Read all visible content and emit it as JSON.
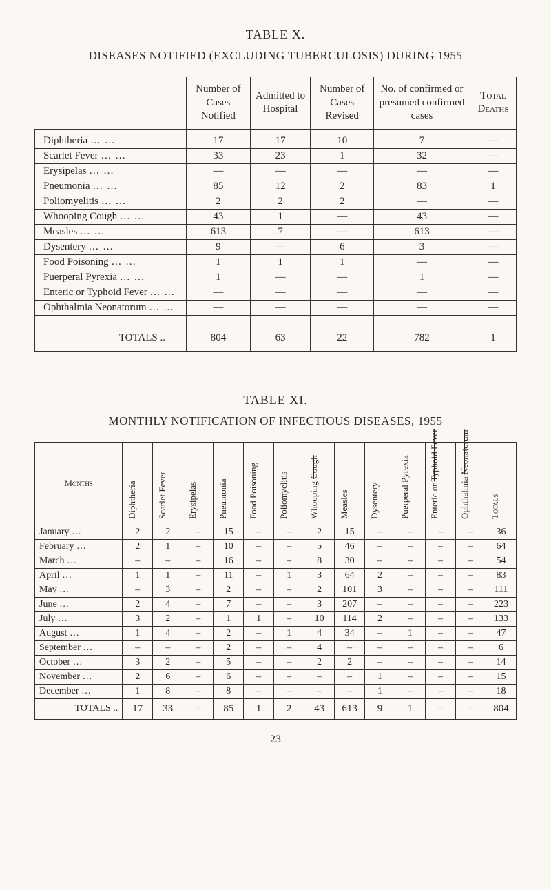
{
  "tableX": {
    "label": "TABLE X.",
    "title": "DISEASES NOTIFIED (EXCLUDING TUBERCULOSIS) DURING 1955",
    "headers": {
      "disease": "",
      "number_cases": "Number of Cases Notified",
      "admitted": "Admitted to Hospital",
      "revised": "Number of Cases Revised",
      "confirmed": "No. of confirmed or presumed confirmed cases",
      "deaths": "Total Deaths"
    },
    "rows": [
      {
        "name": "Diphtheria",
        "v": [
          "17",
          "17",
          "10",
          "7",
          "—"
        ]
      },
      {
        "name": "Scarlet Fever",
        "v": [
          "33",
          "23",
          "1",
          "32",
          "—"
        ]
      },
      {
        "name": "Erysipelas",
        "v": [
          "—",
          "—",
          "—",
          "—",
          "—"
        ]
      },
      {
        "name": "Pneumonia",
        "v": [
          "85",
          "12",
          "2",
          "83",
          "1"
        ]
      },
      {
        "name": "Poliomyelitis",
        "v": [
          "2",
          "2",
          "2",
          "—",
          "—"
        ]
      },
      {
        "name": "Whooping Cough",
        "v": [
          "43",
          "1",
          "—",
          "43",
          "—"
        ]
      },
      {
        "name": "Measles",
        "v": [
          "613",
          "7",
          "—",
          "613",
          "—"
        ]
      },
      {
        "name": "Dysentery",
        "v": [
          "9",
          "—",
          "6",
          "3",
          "—"
        ]
      },
      {
        "name": "Food Poisoning",
        "v": [
          "1",
          "1",
          "1",
          "—",
          "—"
        ]
      },
      {
        "name": "Puerperal Pyrexia",
        "v": [
          "1",
          "—",
          "—",
          "1",
          "—"
        ]
      },
      {
        "name": "Enteric or Typhoid Fever",
        "v": [
          "—",
          "—",
          "—",
          "—",
          "—"
        ]
      },
      {
        "name": "Ophthalmia Neonatorum",
        "v": [
          "—",
          "—",
          "—",
          "—",
          "—"
        ]
      }
    ],
    "totals": {
      "label": "TOTALS",
      "v": [
        "804",
        "63",
        "22",
        "782",
        "1"
      ]
    }
  },
  "tableXI": {
    "label": "TABLE XI.",
    "title": "MONTHLY NOTIFICATION OF INFECTIOUS DISEASES, 1955",
    "headers": {
      "months": "Months",
      "diphtheria": "Diphtheria",
      "scarlet": "Scarlet Fever",
      "erysipelas": "Erysipelas",
      "pneumonia": "Pneumonia",
      "food": "Food Poisoning",
      "polio": "Poliomyelitis",
      "whooping": "Whooping Cough",
      "measles": "Measles",
      "dysentery": "Dysentery",
      "puerperal": "Puerperal Pyrexia",
      "enteric": "Enteric or Typhoid Fever",
      "ophthalmia": "Ophthalmia Neonatorum",
      "totals": "Totals"
    },
    "rows": [
      {
        "m": "January",
        "v": [
          "2",
          "2",
          "–",
          "15",
          "–",
          "–",
          "2",
          "15",
          "–",
          "–",
          "–",
          "–",
          "36"
        ]
      },
      {
        "m": "February",
        "v": [
          "2",
          "1",
          "–",
          "10",
          "–",
          "–",
          "5",
          "46",
          "–",
          "–",
          "–",
          "–",
          "64"
        ]
      },
      {
        "m": "March",
        "v": [
          "–",
          "–",
          "–",
          "16",
          "–",
          "–",
          "8",
          "30",
          "–",
          "–",
          "–",
          "–",
          "54"
        ]
      },
      {
        "m": "April",
        "v": [
          "1",
          "1",
          "–",
          "11",
          "–",
          "1",
          "3",
          "64",
          "2",
          "–",
          "–",
          "–",
          "83"
        ]
      },
      {
        "m": "May",
        "v": [
          "–",
          "3",
          "–",
          "2",
          "–",
          "–",
          "2",
          "101",
          "3",
          "–",
          "–",
          "–",
          "111"
        ]
      },
      {
        "m": "June",
        "v": [
          "2",
          "4",
          "–",
          "7",
          "–",
          "–",
          "3",
          "207",
          "–",
          "–",
          "–",
          "–",
          "223"
        ]
      },
      {
        "m": "July",
        "v": [
          "3",
          "2",
          "–",
          "1",
          "1",
          "–",
          "10",
          "114",
          "2",
          "–",
          "–",
          "–",
          "133"
        ]
      },
      {
        "m": "August",
        "v": [
          "1",
          "4",
          "–",
          "2",
          "–",
          "1",
          "4",
          "34",
          "–",
          "1",
          "–",
          "–",
          "47"
        ]
      },
      {
        "m": "September",
        "v": [
          "–",
          "–",
          "–",
          "2",
          "–",
          "–",
          "4",
          "–",
          "–",
          "–",
          "–",
          "–",
          "6"
        ]
      },
      {
        "m": "October",
        "v": [
          "3",
          "2",
          "–",
          "5",
          "–",
          "–",
          "2",
          "2",
          "–",
          "–",
          "–",
          "–",
          "14"
        ]
      },
      {
        "m": "November",
        "v": [
          "2",
          "6",
          "–",
          "6",
          "–",
          "–",
          "–",
          "–",
          "1",
          "–",
          "–",
          "–",
          "15"
        ]
      },
      {
        "m": "December",
        "v": [
          "1",
          "8",
          "–",
          "8",
          "–",
          "–",
          "–",
          "–",
          "1",
          "–",
          "–",
          "–",
          "18"
        ]
      }
    ],
    "totals": {
      "label": "TOTALS",
      "v": [
        "17",
        "33",
        "–",
        "85",
        "1",
        "2",
        "43",
        "613",
        "9",
        "1",
        "–",
        "–",
        "804"
      ]
    }
  },
  "page_number": "23"
}
